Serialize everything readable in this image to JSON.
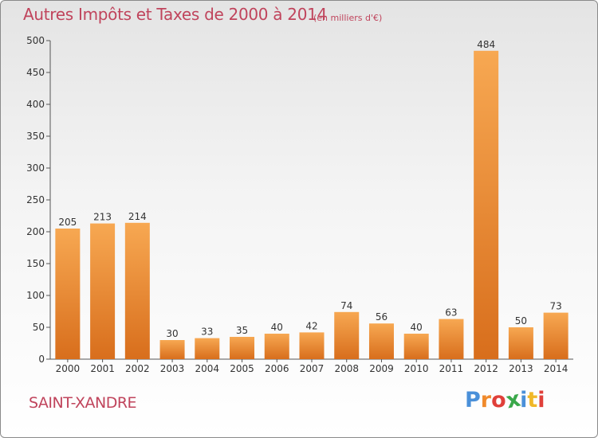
{
  "header": {
    "title": "Autres Impôts et Taxes de 2000 à 2014",
    "subtitle": "(en milliers d'€)"
  },
  "footer": {
    "commune": "SAINT-XANDRE",
    "logo": {
      "letters": [
        "P",
        "r",
        "o",
        "x",
        "i",
        "t",
        "i"
      ],
      "colors": [
        "#4a90d9",
        "#f08a2c",
        "#e0403a",
        "#3aa84a",
        "#4a90d9",
        "#f0b828",
        "#e0403a"
      ]
    }
  },
  "chart_data": {
    "type": "bar",
    "categories": [
      "2000",
      "2001",
      "2002",
      "2003",
      "2004",
      "2005",
      "2006",
      "2007",
      "2008",
      "2009",
      "2010",
      "2011",
      "2012",
      "2013",
      "2014"
    ],
    "values": [
      205,
      213,
      214,
      30,
      33,
      35,
      40,
      42,
      74,
      56,
      40,
      63,
      484,
      50,
      73
    ],
    "title": "Autres Impôts et Taxes de 2000 à 2014",
    "subtitle": "(en milliers d'€)",
    "ylim": [
      0,
      500
    ],
    "yticks": [
      0,
      50,
      100,
      150,
      200,
      250,
      300,
      350,
      400,
      450,
      500
    ],
    "grid": false,
    "bar_color": "#f09a3e",
    "data_labels": true
  }
}
